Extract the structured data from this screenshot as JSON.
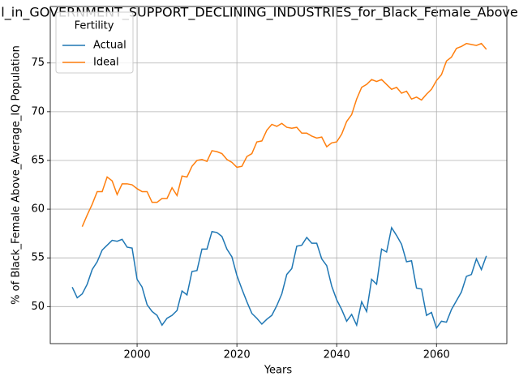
{
  "chart_data": {
    "type": "line",
    "title": "l_in_GOVERNMENT_SUPPORT_DECLINING_INDUSTRIES_for_Black_Female_Above",
    "x_label": "Years",
    "y_label": "% of Black_Female Above_Average_IQ Population",
    "legend_title": "Fertility",
    "legend": "upper left",
    "grid": true,
    "x": [
      1987,
      1988,
      1989,
      1990,
      1991,
      1992,
      1993,
      1994,
      1995,
      1996,
      1997,
      1998,
      1999,
      2000,
      2001,
      2002,
      2003,
      2004,
      2005,
      2006,
      2007,
      2008,
      2009,
      2010,
      2011,
      2012,
      2013,
      2014,
      2015,
      2016,
      2017,
      2018,
      2019,
      2020,
      2021,
      2022,
      2023,
      2024,
      2025,
      2026,
      2027,
      2028,
      2029,
      2030,
      2031,
      2032,
      2033,
      2034,
      2035,
      2036,
      2037,
      2038,
      2039,
      2040,
      2041,
      2042,
      2043,
      2044,
      2045,
      2046,
      2047,
      2048,
      2049,
      2050,
      2051,
      2052,
      2053,
      2054,
      2055,
      2056,
      2057,
      2058,
      2059,
      2060,
      2061,
      2062,
      2063,
      2064,
      2065,
      2066,
      2067,
      2068,
      2069,
      2070
    ],
    "series": [
      {
        "name": "Actual",
        "color": "#1f77b4",
        "values": [
          52.0,
          50.9,
          51.3,
          52.3,
          53.8,
          54.6,
          55.8,
          56.3,
          56.8,
          56.7,
          56.9,
          56.1,
          56.0,
          52.8,
          52.0,
          50.2,
          49.5,
          49.1,
          48.1,
          48.8,
          49.1,
          49.6,
          51.6,
          51.2,
          53.6,
          53.7,
          55.9,
          55.9,
          57.7,
          57.6,
          57.2,
          55.9,
          55.1,
          53.2,
          51.8,
          50.5,
          49.3,
          48.8,
          48.2,
          48.7,
          49.1,
          50.1,
          51.3,
          53.3,
          53.9,
          56.2,
          56.3,
          57.1,
          56.5,
          56.5,
          54.9,
          54.2,
          52.1,
          50.7,
          49.7,
          48.5,
          49.2,
          48.1,
          50.5,
          49.5,
          52.8,
          52.3,
          55.9,
          55.6,
          58.1,
          57.3,
          56.4,
          54.6,
          54.7,
          51.9,
          51.8,
          49.1,
          49.4,
          47.8,
          48.5,
          48.4,
          49.7,
          50.6,
          51.5,
          53.1,
          53.3,
          54.9,
          53.8,
          55.2
        ]
      },
      {
        "name": "Ideal",
        "color": "#ff7f0e",
        "values": [
          null,
          null,
          58.2,
          59.4,
          60.5,
          61.8,
          61.8,
          63.3,
          62.9,
          61.5,
          62.6,
          62.6,
          62.5,
          62.1,
          61.8,
          61.8,
          60.7,
          60.7,
          61.1,
          61.1,
          62.2,
          61.4,
          63.4,
          63.3,
          64.4,
          65.0,
          65.1,
          64.9,
          66.0,
          65.9,
          65.7,
          65.1,
          64.8,
          64.3,
          64.4,
          65.4,
          65.7,
          66.9,
          67.0,
          68.1,
          68.7,
          68.5,
          68.8,
          68.4,
          68.3,
          68.4,
          67.8,
          67.8,
          67.5,
          67.3,
          67.4,
          66.4,
          66.8,
          66.9,
          67.7,
          69.0,
          69.7,
          71.3,
          72.5,
          72.8,
          73.3,
          73.1,
          73.3,
          72.8,
          72.3,
          72.5,
          71.9,
          72.1,
          71.3,
          71.5,
          71.2,
          71.8,
          72.3,
          73.2,
          73.8,
          75.2,
          75.6,
          76.5,
          76.7,
          77.0,
          76.9,
          76.8,
          77.0,
          76.4
        ]
      }
    ],
    "xlim": [
      1982.6,
      2074.1
    ],
    "ylim": [
      46.2,
      80.8
    ],
    "xticks": [
      2000,
      2020,
      2040,
      2060
    ],
    "yticks": [
      50,
      55,
      60,
      65,
      70,
      75
    ]
  }
}
